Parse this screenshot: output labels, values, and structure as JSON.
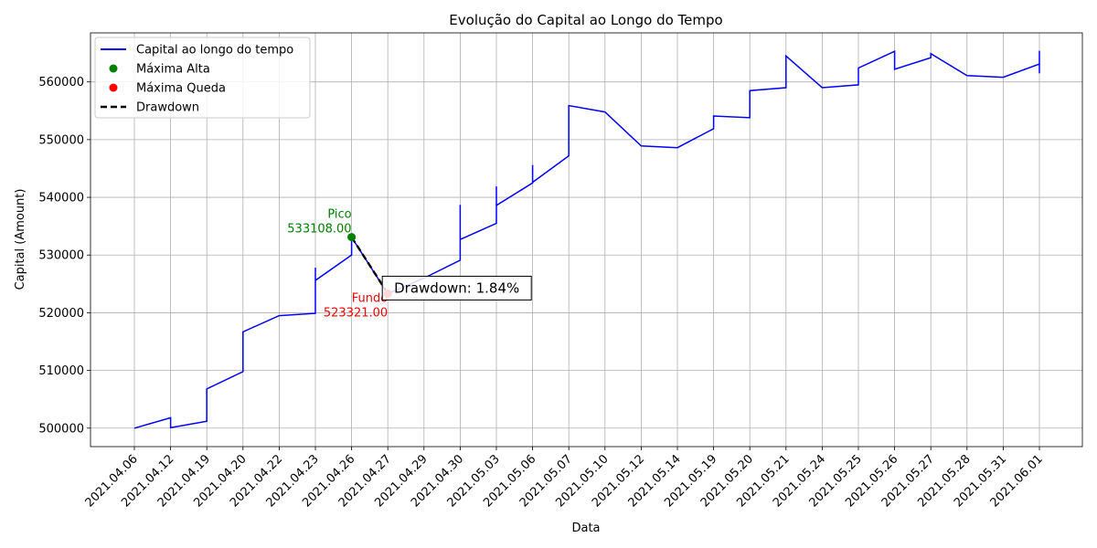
{
  "chart_data": {
    "type": "line",
    "title": "Evolução do Capital ao Longo do Tempo",
    "xlabel": "Data",
    "ylabel": "Capital (Amount)",
    "ylim": [
      496800,
      568500
    ],
    "yticks": [
      500000,
      510000,
      520000,
      530000,
      540000,
      550000,
      560000
    ],
    "grid": true,
    "legend_position": "top-left",
    "categories": [
      "2021.04.06",
      "2021.04.12",
      "2021.04.19",
      "2021.04.20",
      "2021.04.22",
      "2021.04.23",
      "2021.04.26",
      "2021.04.27",
      "2021.04.29",
      "2021.04.30",
      "2021.05.03",
      "2021.05.06",
      "2021.05.07",
      "2021.05.10",
      "2021.05.12",
      "2021.05.14",
      "2021.05.19",
      "2021.05.20",
      "2021.05.21",
      "2021.05.24",
      "2021.05.25",
      "2021.05.26",
      "2021.05.27",
      "2021.05.28",
      "2021.05.31",
      "2021.06.01"
    ],
    "series": [
      {
        "name": "Capital ao longo do tempo",
        "color": "#0000ff",
        "points": [
          [
            0,
            500000
          ],
          [
            1,
            501800
          ],
          [
            1,
            500100
          ],
          [
            2,
            501200
          ],
          [
            2,
            506800
          ],
          [
            3,
            509800
          ],
          [
            3,
            516700
          ],
          [
            4,
            519500
          ],
          [
            5,
            519900
          ],
          [
            5,
            527800
          ],
          [
            5,
            525600
          ],
          [
            6,
            530000
          ],
          [
            6,
            533100
          ],
          [
            7,
            523300
          ],
          [
            8,
            526000
          ],
          [
            9,
            529100
          ],
          [
            9,
            538700
          ],
          [
            9,
            532700
          ],
          [
            10,
            535500
          ],
          [
            10,
            541900
          ],
          [
            10,
            538600
          ],
          [
            11,
            542500
          ],
          [
            11,
            545600
          ],
          [
            11,
            542600
          ],
          [
            12,
            547200
          ],
          [
            12,
            555900
          ],
          [
            13,
            554800
          ],
          [
            14,
            548900
          ],
          [
            15,
            548600
          ],
          [
            16,
            551900
          ],
          [
            16,
            554100
          ],
          [
            17,
            553800
          ],
          [
            17,
            558500
          ],
          [
            18,
            559000
          ],
          [
            18,
            564500
          ],
          [
            19,
            559000
          ],
          [
            20,
            559500
          ],
          [
            20,
            562400
          ],
          [
            21,
            565300
          ],
          [
            21,
            562200
          ],
          [
            22,
            564200
          ],
          [
            22,
            564900
          ],
          [
            23,
            561100
          ],
          [
            24,
            560800
          ],
          [
            25,
            563100
          ],
          [
            25,
            565400
          ],
          [
            25,
            561500
          ]
        ]
      },
      {
        "name": "Drawdown",
        "color": "#000000",
        "style": "dashed",
        "points": [
          [
            6,
            533108
          ],
          [
            7,
            523321
          ]
        ]
      }
    ],
    "markers": [
      {
        "name": "Máxima Alta",
        "color": "#008000",
        "x": 6,
        "y": 533108
      },
      {
        "name": "Máxima Queda",
        "color": "#ff0000",
        "x": 7,
        "y": 523321
      }
    ],
    "annotations": {
      "peak_label": "Pico",
      "peak_value": "533108.00",
      "peak_color": "#008000",
      "trough_label": "Fundo",
      "trough_value": "523321.00",
      "trough_color": "#ff0000",
      "drawdown_text": "Drawdown: 1.84%"
    },
    "legend": [
      {
        "label": "Capital ao longo do tempo",
        "kind": "line",
        "color": "#0000ff"
      },
      {
        "label": "Máxima Alta",
        "kind": "dot",
        "color": "#008000"
      },
      {
        "label": "Máxima Queda",
        "kind": "dot",
        "color": "#ff0000"
      },
      {
        "label": "Drawdown",
        "kind": "dashed",
        "color": "#000000"
      }
    ]
  }
}
